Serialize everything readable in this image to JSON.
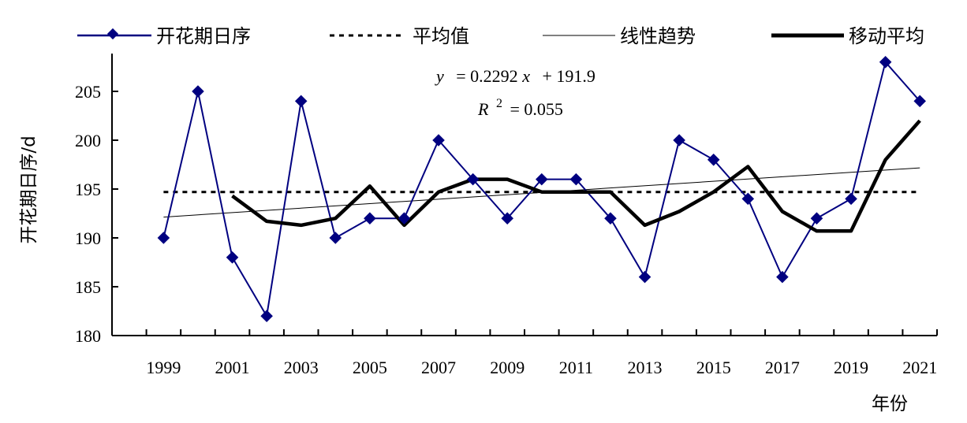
{
  "chart_data": {
    "type": "line",
    "ylabel": "开花期日序/d",
    "xlabel": "年份",
    "ylim": [
      180,
      209
    ],
    "yticks": [
      180,
      185,
      190,
      195,
      200,
      205
    ],
    "x_ticks_labeled": [
      "1999",
      "2001",
      "2003",
      "2005",
      "2007",
      "2009",
      "2011",
      "2013",
      "2015",
      "2017",
      "2019",
      "2021"
    ],
    "x": [
      1999,
      2000,
      2001,
      2002,
      2003,
      2004,
      2005,
      2006,
      2007,
      2008,
      2009,
      2010,
      2011,
      2012,
      2013,
      2014,
      2015,
      2016,
      2017,
      2018,
      2019,
      2020,
      2021
    ],
    "series": [
      {
        "name": "开花期日序",
        "style": "line-diamond",
        "color": "#000080",
        "values": [
          190,
          205,
          188,
          182,
          204,
          190,
          192,
          192,
          200,
          196,
          192,
          196,
          196,
          192,
          186,
          200,
          198,
          194,
          186,
          192,
          194,
          208,
          204
        ]
      },
      {
        "name": "平均值",
        "style": "dotted",
        "color": "#000000",
        "value": 194.7
      },
      {
        "name": "线性趋势",
        "style": "thin-line",
        "color": "#000000",
        "slope": 0.2292,
        "intercept": 191.9
      },
      {
        "name": "移动平均",
        "style": "thick-line",
        "color": "#000000",
        "x": [
          2001,
          2002,
          2003,
          2004,
          2005,
          2006,
          2007,
          2008,
          2009,
          2010,
          2011,
          2012,
          2013,
          2014,
          2015,
          2016,
          2017,
          2018,
          2019,
          2020,
          2021
        ],
        "values": [
          194.3,
          191.7,
          191.3,
          192.0,
          195.3,
          191.3,
          194.7,
          196.0,
          196.0,
          194.7,
          194.7,
          194.7,
          191.3,
          192.7,
          194.7,
          197.3,
          192.7,
          190.7,
          190.7,
          198.0,
          202.0
        ]
      }
    ],
    "equation": {
      "line1_y": "y",
      "line1_rest": "= 0.2292",
      "line1_x": "x",
      "line1_tail": "+ 191.9",
      "line2_r": "R",
      "line2_sup": "2",
      "line2_rest": "= 0.055"
    },
    "legend_position": "top",
    "grid": false
  }
}
